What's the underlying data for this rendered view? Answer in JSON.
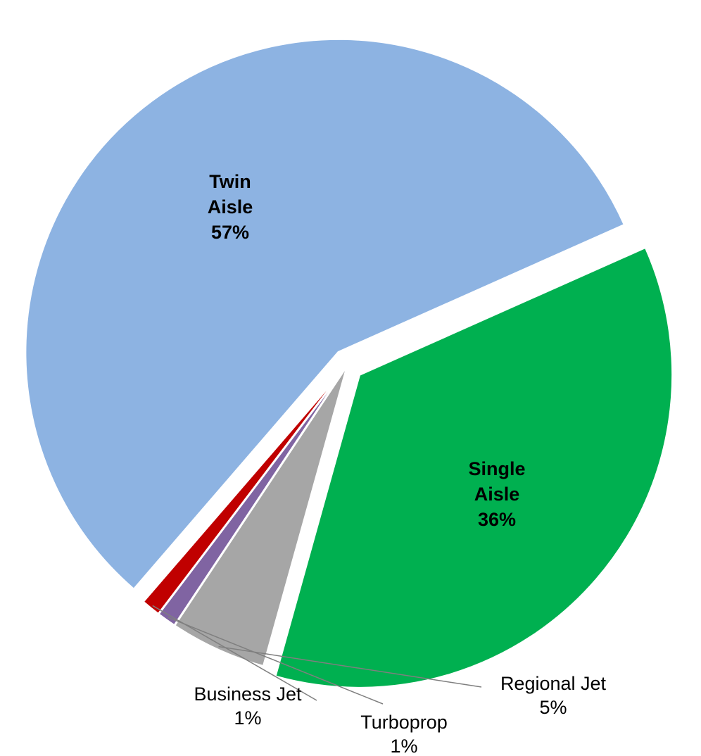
{
  "chart_data": {
    "type": "pie",
    "title": "",
    "slices": [
      {
        "line1": "Single",
        "line2": "Aisle",
        "pct": "36%",
        "value": 36,
        "color": "#00b050",
        "label_position": "inside",
        "exploded": true
      },
      {
        "line1": "Regional Jet",
        "line2": "",
        "pct": "5%",
        "value": 5,
        "color": "#a6a6a6",
        "label_position": "outside",
        "exploded": false
      },
      {
        "line1": "Turboprop",
        "line2": "",
        "pct": "1%",
        "value": 1,
        "color": "#8064a2",
        "label_position": "outside",
        "exploded": false
      },
      {
        "line1": "Business Jet",
        "line2": "",
        "pct": "1%",
        "value": 1,
        "color": "#c00000",
        "label_position": "outside",
        "exploded": false
      },
      {
        "line1": "Twin",
        "line2": "Aisle",
        "pct": "57%",
        "value": 57,
        "color": "#8db3e2",
        "label_position": "inside",
        "exploded": true
      }
    ]
  }
}
